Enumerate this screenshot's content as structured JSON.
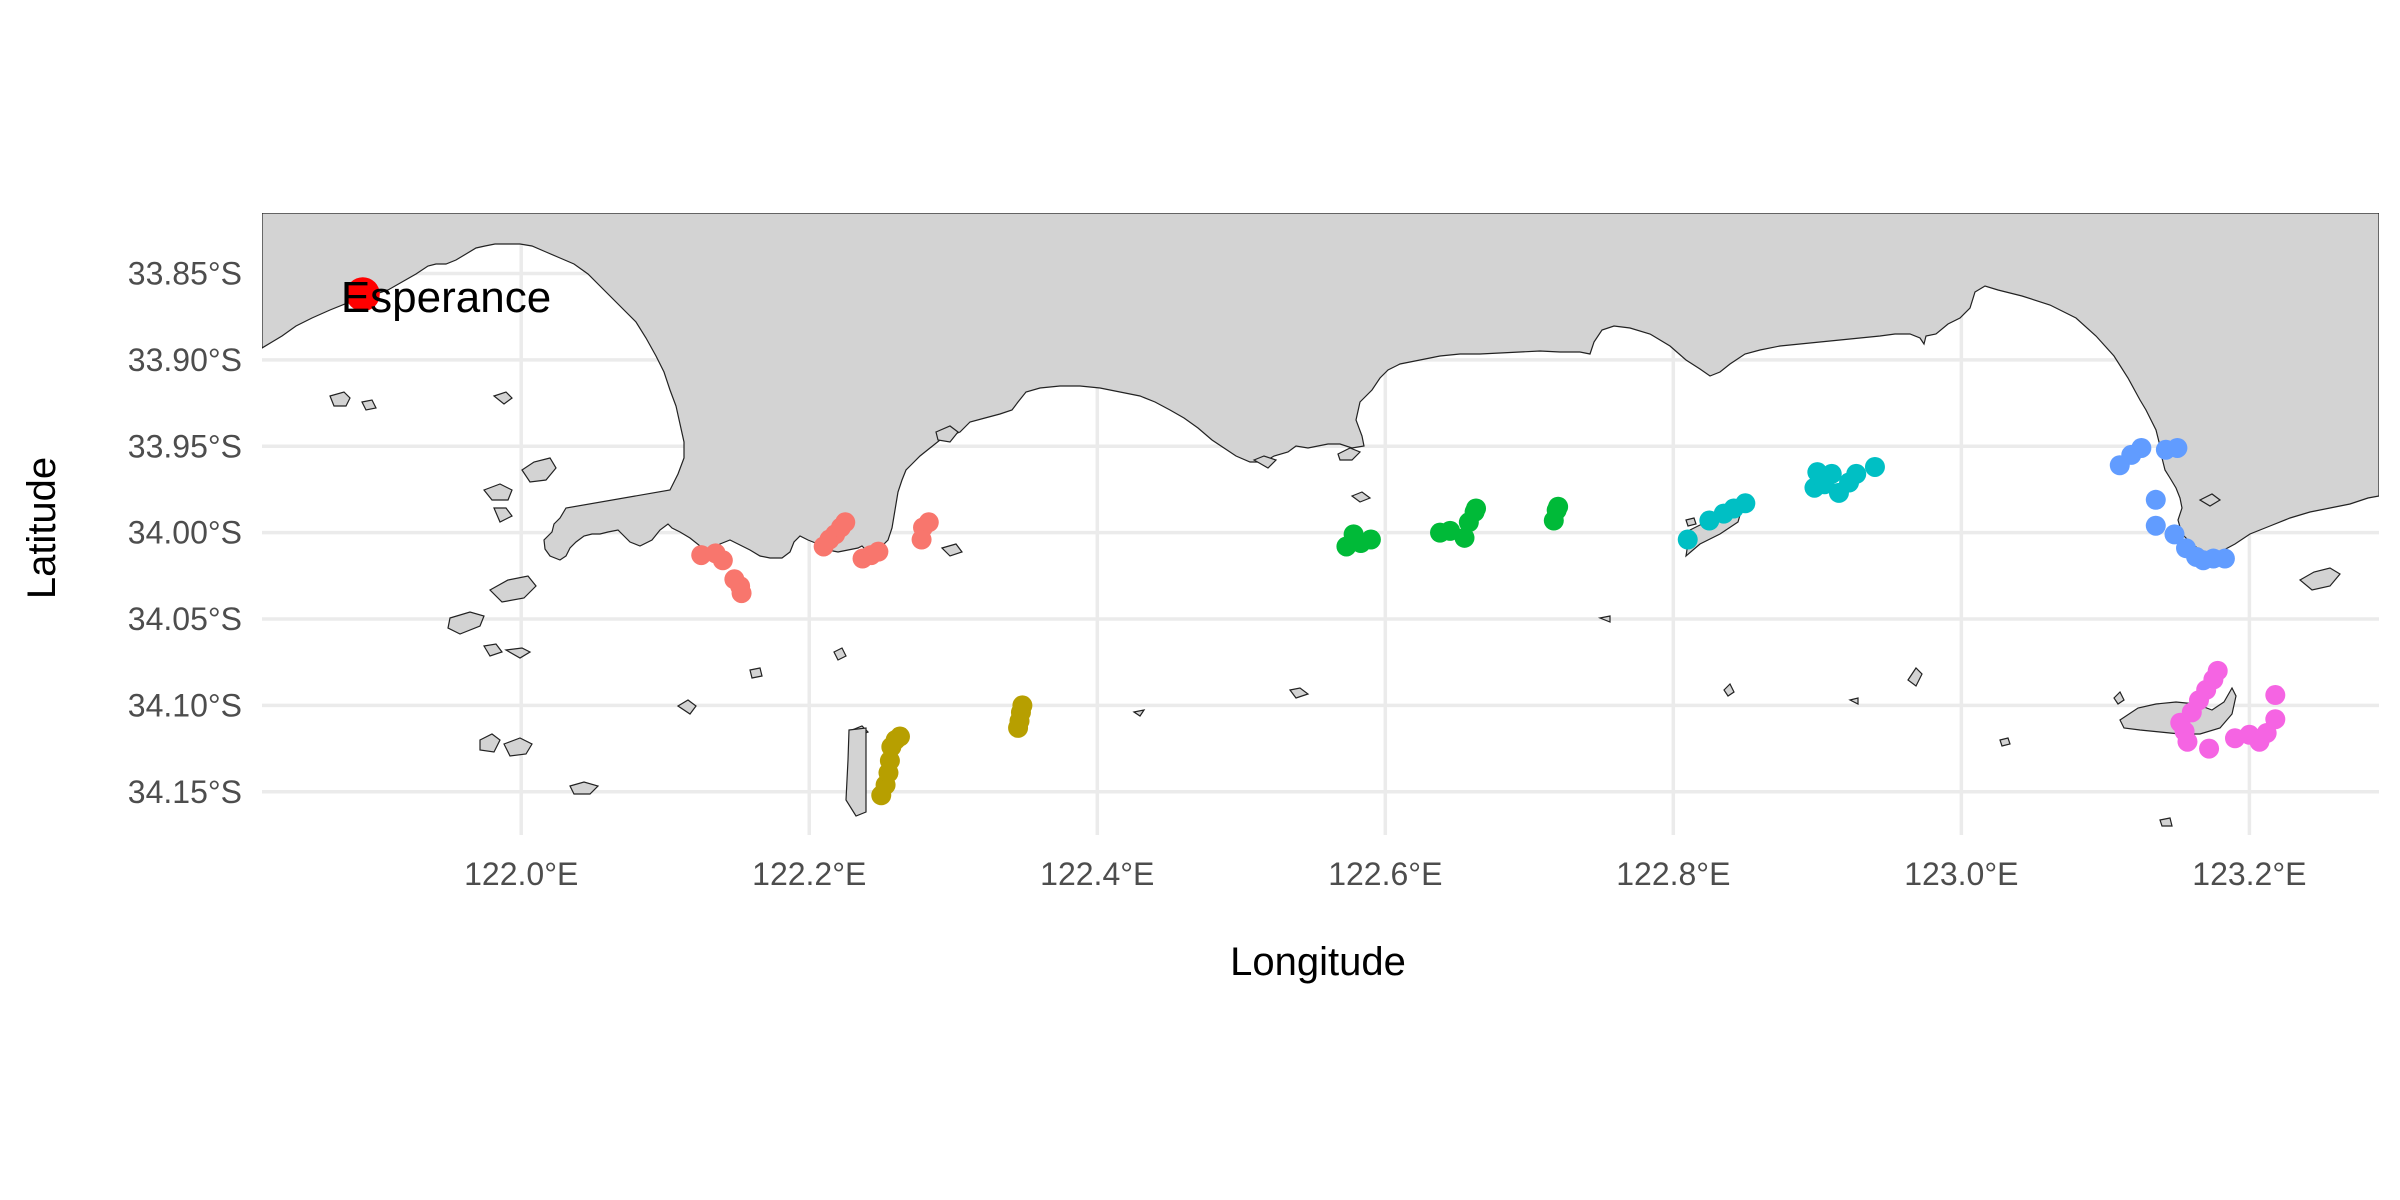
{
  "map": {
    "xlabel": "Longitude",
    "ylabel": "Latitude",
    "x_ticks": [
      "122.0°E",
      "122.2°E",
      "122.4°E",
      "122.6°E",
      "122.8°E",
      "123.0°E",
      "123.2°E"
    ],
    "y_ticks": [
      "33.85°S",
      "33.90°S",
      "33.95°S",
      "34.00°S",
      "34.05°S",
      "34.10°S",
      "34.15°S"
    ],
    "x_tick_values": [
      122.0,
      122.2,
      122.4,
      122.6,
      122.8,
      123.0,
      123.2
    ],
    "y_tick_values": [
      -33.85,
      -33.9,
      -33.95,
      -34.0,
      -34.05,
      -34.1,
      -34.15
    ],
    "xlim": [
      121.82,
      123.29
    ],
    "ylim": [
      -34.175,
      -33.815
    ],
    "grid": true,
    "land_color": "#d3d3d3",
    "grid_color": "#ebebeb",
    "town": {
      "name": "Esperance",
      "lon": 121.89,
      "lat": -33.862,
      "color": "#ff0000"
    }
  },
  "chart_data": {
    "type": "scatter",
    "xlabel": "Longitude",
    "ylabel": "Latitude",
    "xlim": [
      121.82,
      123.29
    ],
    "ylim": [
      -34.175,
      -33.815
    ],
    "grid": true,
    "legend": "none",
    "series": [
      {
        "color": "#f8766d",
        "points": [
          [
            122.125,
            -34.013
          ],
          [
            122.135,
            -34.012
          ],
          [
            122.14,
            -34.016
          ],
          [
            122.148,
            -34.027
          ],
          [
            122.152,
            -34.031
          ],
          [
            122.153,
            -34.035
          ],
          [
            122.21,
            -34.008
          ],
          [
            122.214,
            -34.004
          ],
          [
            122.218,
            -34.001
          ],
          [
            122.222,
            -33.997
          ],
          [
            122.225,
            -33.994
          ],
          [
            122.237,
            -34.015
          ],
          [
            122.243,
            -34.013
          ],
          [
            122.248,
            -34.011
          ],
          [
            122.278,
            -34.004
          ],
          [
            122.279,
            -33.997
          ],
          [
            122.283,
            -33.994
          ]
        ]
      },
      {
        "color": "#b79f00",
        "points": [
          [
            122.25,
            -34.152
          ],
          [
            122.253,
            -34.146
          ],
          [
            122.255,
            -34.139
          ],
          [
            122.256,
            -34.132
          ],
          [
            122.257,
            -34.124
          ],
          [
            122.26,
            -34.12
          ],
          [
            122.263,
            -34.118
          ],
          [
            122.345,
            -34.113
          ],
          [
            122.346,
            -34.109
          ],
          [
            122.347,
            -34.104
          ],
          [
            122.348,
            -34.1
          ]
        ]
      },
      {
        "color": "#00ba38",
        "points": [
          [
            122.573,
            -34.008
          ],
          [
            122.578,
            -34.001
          ],
          [
            122.583,
            -34.006
          ],
          [
            122.59,
            -34.004
          ],
          [
            122.638,
            -34.0
          ],
          [
            122.645,
            -33.999
          ],
          [
            122.655,
            -34.003
          ],
          [
            122.658,
            -33.994
          ],
          [
            122.662,
            -33.988
          ],
          [
            122.663,
            -33.986
          ],
          [
            122.717,
            -33.993
          ],
          [
            122.719,
            -33.987
          ],
          [
            122.72,
            -33.985
          ]
        ]
      },
      {
        "color": "#00bfc4",
        "points": [
          [
            122.81,
            -34.004
          ],
          [
            122.825,
            -33.993
          ],
          [
            122.835,
            -33.989
          ],
          [
            122.842,
            -33.986
          ],
          [
            122.85,
            -33.983
          ],
          [
            122.898,
            -33.974
          ],
          [
            122.9,
            -33.965
          ],
          [
            122.905,
            -33.972
          ],
          [
            122.91,
            -33.966
          ],
          [
            122.915,
            -33.977
          ],
          [
            122.922,
            -33.971
          ],
          [
            122.927,
            -33.966
          ],
          [
            122.94,
            -33.962
          ]
        ]
      },
      {
        "color": "#619cff",
        "points": [
          [
            123.11,
            -33.961
          ],
          [
            123.118,
            -33.955
          ],
          [
            123.125,
            -33.951
          ],
          [
            123.135,
            -33.981
          ],
          [
            123.135,
            -33.996
          ],
          [
            123.142,
            -33.952
          ],
          [
            123.15,
            -33.951
          ],
          [
            123.148,
            -34.001
          ],
          [
            123.156,
            -34.009
          ],
          [
            123.163,
            -34.014
          ],
          [
            123.168,
            -34.016
          ],
          [
            123.175,
            -34.015
          ],
          [
            123.183,
            -34.015
          ]
        ]
      },
      {
        "color": "#f564e3",
        "points": [
          [
            123.152,
            -34.11
          ],
          [
            123.155,
            -34.115
          ],
          [
            123.157,
            -34.121
          ],
          [
            123.16,
            -34.104
          ],
          [
            123.165,
            -34.097
          ],
          [
            123.17,
            -34.091
          ],
          [
            123.175,
            -34.085
          ],
          [
            123.178,
            -34.08
          ],
          [
            123.172,
            -34.125
          ],
          [
            123.19,
            -34.119
          ],
          [
            123.2,
            -34.117
          ],
          [
            123.207,
            -34.121
          ],
          [
            123.212,
            -34.116
          ],
          [
            123.218,
            -34.108
          ],
          [
            123.218,
            -34.094
          ]
        ]
      }
    ]
  }
}
